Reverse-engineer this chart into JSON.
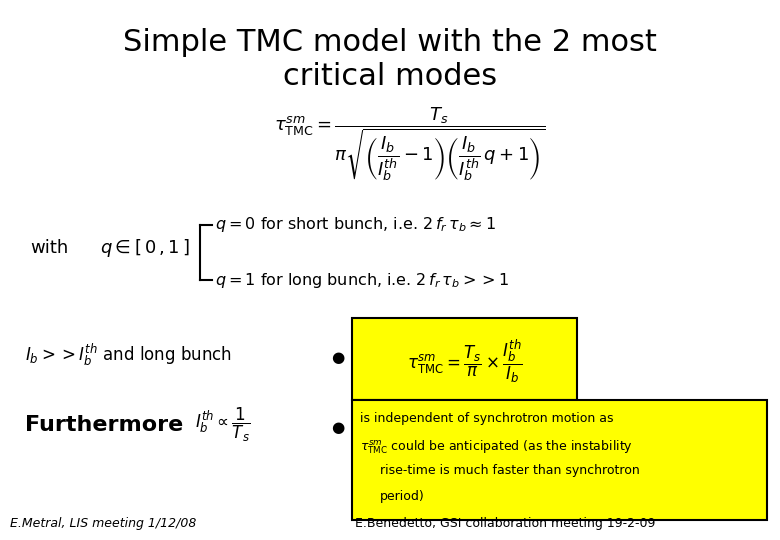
{
  "title_line1": "Simple TMC model with the 2 most",
  "title_line2": "critical modes",
  "title_fontsize": 22,
  "bg_color": "#ffffff",
  "formula_main": "$\\tau_{\\mathrm{TMC}}^{sm} = \\dfrac{T_s}{\\pi\\sqrt{\\left(\\dfrac{I_b}{I^{th}_b}-1\\right)\\left(\\dfrac{I_b}{I^{th}_b}\\,q+1\\right)}}$",
  "with_label": "with",
  "q_range": "$q\\in[\\,0\\,,1\\,]$",
  "q_short": "$q=0$ for short bunch, i.e. $2\\,f_r\\,\\tau_b\\approx 1$",
  "q_long": "$q=1$ for long bunch, i.e. $2\\,f_r\\,\\tau_b >> 1$",
  "limit_label": "$I_b >> I_b^{th}$ and long bunch",
  "bullet": "●",
  "formula_simplified": "$\\tau_{\\mathrm{TMC}}^{sm} = \\dfrac{T_s}{\\pi}\\times\\dfrac{I_b^{th}}{I_b}$",
  "furthermore_label": "Furthermore",
  "furthermore_formula": "$I_b^{th}\\propto\\dfrac{1}{T_s}$",
  "box_text_line1": "is independent of synchrotron motion as",
  "box_text_line2_pre": "$\\tau_{\\mathrm{TMC}}^{sm}$",
  "box_text_line2_post": "could be anticipated (as the instability",
  "box_text_line3": "rise-time is much faster than synchrotron",
  "box_text_line4": "period)",
  "footer_left": "E.Metral, LIS meeting 1/12/08",
  "footer_right": "E.Benedetto, GSI collaboration meeting 19-2-09",
  "yellow_color": "#ffff00",
  "text_color": "#000000",
  "footer_fontsize": 9
}
